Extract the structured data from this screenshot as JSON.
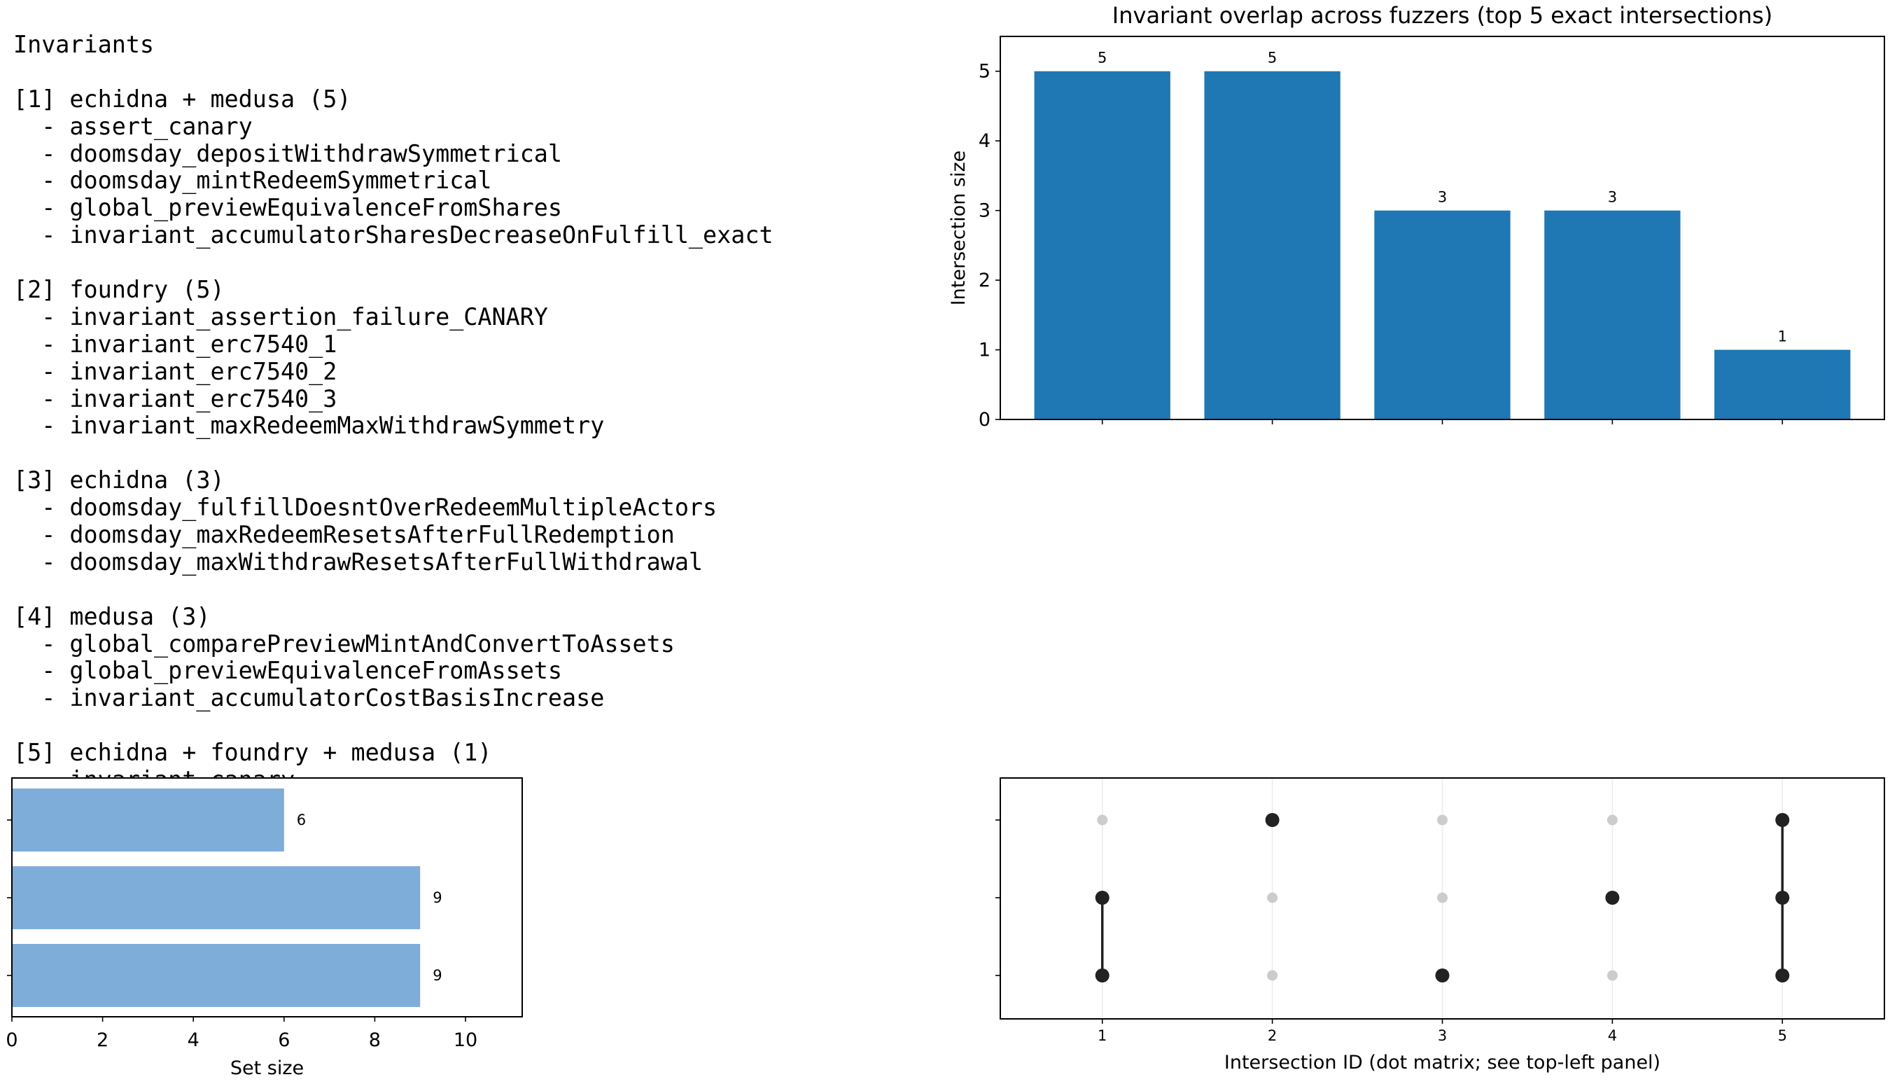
{
  "listing": {
    "heading": "Invariants",
    "groups": [
      {
        "header": "[1] echidna + medusa (5)",
        "items": [
          "assert_canary",
          "doomsday_depositWithdrawSymmetrical",
          "doomsday_mintRedeemSymmetrical",
          "global_previewEquivalenceFromShares",
          "invariant_accumulatorSharesDecreaseOnFulfill_exact"
        ]
      },
      {
        "header": "[2] foundry (5)",
        "items": [
          "invariant_assertion_failure_CANARY",
          "invariant_erc7540_1",
          "invariant_erc7540_2",
          "invariant_erc7540_3",
          "invariant_maxRedeemMaxWithdrawSymmetry"
        ]
      },
      {
        "header": "[3] echidna (3)",
        "items": [
          "doomsday_fulfillDoesntOverRedeemMultipleActors",
          "doomsday_maxRedeemResetsAfterFullRedemption",
          "doomsday_maxWithdrawResetsAfterFullWithdrawal"
        ]
      },
      {
        "header": "[4] medusa (3)",
        "items": [
          "global_comparePreviewMintAndConvertToAssets",
          "global_previewEquivalenceFromAssets",
          "invariant_accumulatorCostBasisIncrease"
        ]
      },
      {
        "header": "[5] echidna + foundry + medusa (1)",
        "items": [
          "invariant_canary"
        ]
      }
    ]
  },
  "chart_data": [
    {
      "type": "bar",
      "title": "Invariant overlap across fuzzers (top 5 exact intersections)",
      "xlabel": "",
      "ylabel": "Intersection size",
      "categories": [
        1,
        2,
        3,
        4,
        5
      ],
      "values": [
        5,
        5,
        3,
        3,
        1
      ],
      "data_labels": [
        "5",
        "5",
        "3",
        "3",
        "1"
      ],
      "ylim": [
        0,
        5.5
      ],
      "xlim": [
        0.4,
        5.6
      ],
      "yticks": [
        "0",
        "1",
        "2",
        "3",
        "4",
        "5"
      ],
      "xtick_labels_shown": false,
      "color": "#1f77b4",
      "grid": false
    },
    {
      "type": "bar",
      "orientation": "horizontal",
      "xlabel": "Set size",
      "ylabel": "",
      "values": [
        9,
        9,
        6
      ],
      "data_labels": [
        "9",
        "9",
        "6"
      ],
      "xlim": [
        0,
        11.25
      ],
      "xticks": [
        "0",
        "2",
        "4",
        "6",
        "8",
        "10"
      ],
      "ytick_labels_shown": false,
      "color": "#7eadda",
      "grid": false
    },
    {
      "type": "scatter",
      "subtype": "dot-matrix",
      "xlabel": "Intersection ID (dot matrix; see top-left panel)",
      "xticks": [
        "1",
        "2",
        "3",
        "4",
        "5"
      ],
      "xlim": [
        0.4,
        5.6
      ],
      "rows": 3,
      "membership": [
        [
          0,
          1
        ],
        [
          2
        ],
        [
          0
        ],
        [
          1
        ],
        [
          0,
          1,
          2
        ]
      ],
      "active_color": "#222222",
      "inactive_color": "#cccccc",
      "grid": "vertical-light"
    }
  ]
}
